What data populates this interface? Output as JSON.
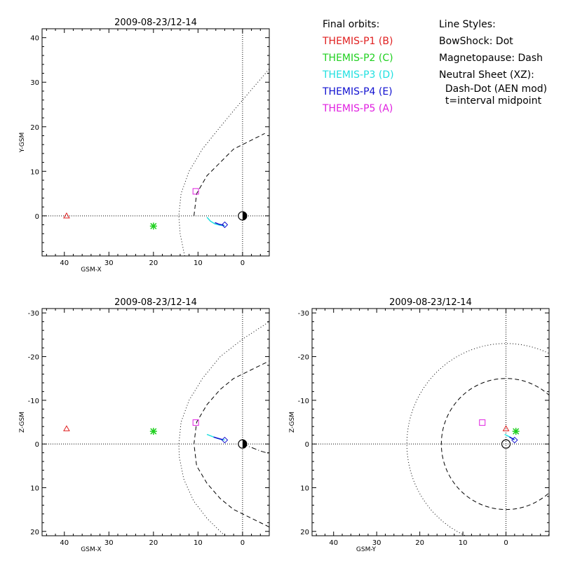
{
  "legend": {
    "orbits_title": "Final orbits:",
    "probes": [
      {
        "label": "THEMIS-P1 (B)",
        "color": "#e02020"
      },
      {
        "label": "THEMIS-P2 (C)",
        "color": "#20d020"
      },
      {
        "label": "THEMIS-P3 (D)",
        "color": "#20e0e0"
      },
      {
        "label": "THEMIS-P4 (E)",
        "color": "#1010d0"
      },
      {
        "label": "THEMIS-P5 (A)",
        "color": "#e020e0"
      }
    ],
    "styles_title": "Line Styles:",
    "bowshock": "BowShock: Dot",
    "magnetopause": "Magnetopause: Dash",
    "neutral_sheet": "Neutral Sheet (XZ):",
    "neutral_sheet_line2": "  Dash-Dot (AEN mod)",
    "neutral_sheet_line3": "  t=interval midpoint"
  },
  "chart_data": [
    {
      "type": "scatter",
      "title": "2009-08-23/12-14",
      "xlabel": "GSM-X",
      "ylabel": "Y-GSM",
      "xlim": [
        45,
        -6
      ],
      "ylim": [
        42,
        -9
      ],
      "xticks": [
        40,
        30,
        20,
        10,
        0
      ],
      "yticks": [
        0,
        10,
        20,
        30,
        40
      ],
      "markers": [
        {
          "probe": "THEMIS-P1 (B)",
          "symbol": "triangle",
          "color": "#e02020",
          "x": 39.5,
          "y": 0
        },
        {
          "probe": "THEMIS-P2 (C)",
          "symbol": "asterisk",
          "color": "#20d020",
          "x": 20.0,
          "y": -2.3
        },
        {
          "probe": "THEMIS-P5 (A)",
          "symbol": "square",
          "color": "#e020e0",
          "x": 10.5,
          "y": 5.5
        },
        {
          "probe": "THEMIS-P4 (E)",
          "symbol": "diamond",
          "color": "#1010d0",
          "x": 4.0,
          "y": -2.0
        }
      ],
      "tracks": [
        {
          "color": "#20e0e0",
          "points": [
            [
              8.0,
              -0.3
            ],
            [
              7.2,
              -1.2
            ],
            [
              6.2,
              -1.8
            ],
            [
              5.0,
              -2.1
            ],
            [
              4.0,
              -2.2
            ]
          ]
        },
        {
          "color": "#1010d0",
          "points": [
            [
              6.2,
              -1.5
            ],
            [
              5.2,
              -1.9
            ],
            [
              4.2,
              -2.1
            ]
          ]
        }
      ],
      "curves": [
        {
          "name": "BowShock",
          "style": "dot",
          "points": [
            [
              13,
              -9
            ],
            [
              14,
              -4
            ],
            [
              14.3,
              0
            ],
            [
              13.8,
              5
            ],
            [
              12,
              10
            ],
            [
              9,
              15
            ],
            [
              5,
              20
            ],
            [
              0,
              26
            ],
            [
              -6,
              33
            ]
          ]
        },
        {
          "name": "Magnetopause",
          "style": "dash",
          "points": [
            [
              10.9,
              0
            ],
            [
              10.3,
              5
            ],
            [
              8,
              9
            ],
            [
              5,
              12
            ],
            [
              2,
              15
            ],
            [
              0,
              16
            ],
            [
              -2,
              17
            ],
            [
              -5,
              18.5
            ]
          ]
        }
      ],
      "earth": {
        "x": 0,
        "y": 0
      }
    },
    {
      "type": "scatter",
      "title": "2009-08-23/12-14",
      "xlabel": "GSM-X",
      "ylabel": "Z-GSM",
      "xlim": [
        45,
        -6
      ],
      "ylim": [
        -31,
        21
      ],
      "xticks": [
        40,
        30,
        20,
        10,
        0
      ],
      "yticks": [
        20,
        10,
        0,
        -10,
        -20,
        -30
      ],
      "markers": [
        {
          "probe": "THEMIS-P1 (B)",
          "symbol": "triangle",
          "color": "#e02020",
          "x": 39.5,
          "y": -3.5
        },
        {
          "probe": "THEMIS-P2 (C)",
          "symbol": "asterisk",
          "color": "#20d020",
          "x": 20.0,
          "y": -2.9
        },
        {
          "probe": "THEMIS-P5 (A)",
          "symbol": "square",
          "color": "#e020e0",
          "x": 10.5,
          "y": -4.9
        },
        {
          "probe": "THEMIS-P4 (E)",
          "symbol": "diamond",
          "color": "#1010d0",
          "x": 4.0,
          "y": -0.9
        }
      ],
      "tracks": [
        {
          "color": "#20e0e0",
          "points": [
            [
              8.0,
              -2.2
            ],
            [
              7.0,
              -1.8
            ],
            [
              6.0,
              -1.4
            ],
            [
              5.0,
              -1.1
            ],
            [
              4.0,
              -0.9
            ]
          ]
        },
        {
          "color": "#1010d0",
          "points": [
            [
              6.5,
              -1.6
            ],
            [
              5.5,
              -1.3
            ],
            [
              4.5,
              -1.0
            ]
          ]
        }
      ],
      "curves": [
        {
          "name": "BowShock",
          "style": "dot",
          "points": [
            [
              4,
              21
            ],
            [
              8,
              17
            ],
            [
              11,
              13
            ],
            [
              13.2,
              8
            ],
            [
              14.2,
              3
            ],
            [
              14.3,
              0
            ],
            [
              13.8,
              -5
            ],
            [
              12,
              -10
            ],
            [
              9,
              -15
            ],
            [
              5,
              -20
            ],
            [
              0,
              -24
            ],
            [
              -6,
              -28
            ]
          ]
        },
        {
          "name": "Magnetopause",
          "style": "dash",
          "points": [
            [
              -6,
              19
            ],
            [
              -3,
              17.5
            ],
            [
              0,
              16
            ],
            [
              2,
              15
            ],
            [
              5,
              12.5
            ],
            [
              8,
              9
            ],
            [
              10.3,
              5
            ],
            [
              10.9,
              0
            ],
            [
              10.3,
              -5
            ],
            [
              8,
              -9
            ],
            [
              5,
              -12.5
            ],
            [
              2,
              -15
            ],
            [
              0,
              -16
            ],
            [
              -3,
              -17.5
            ],
            [
              -6,
              -19
            ]
          ]
        },
        {
          "name": "Neutral Sheet",
          "style": "dashdot",
          "points": [
            [
              0,
              0
            ],
            [
              -2,
              0.8
            ],
            [
              -4,
              1.6
            ],
            [
              -6,
              2.2
            ]
          ]
        }
      ],
      "earth": {
        "x": 0,
        "y": 0
      }
    },
    {
      "type": "scatter",
      "title": "2009-08-23/12-14",
      "xlabel": "GSM-Y",
      "ylabel": "Z-GSM",
      "xlim": [
        45,
        -10
      ],
      "ylim": [
        -31,
        21
      ],
      "xticks": [
        40,
        30,
        20,
        10,
        0
      ],
      "yticks": [
        20,
        10,
        0,
        -10,
        -20,
        -30
      ],
      "markers": [
        {
          "probe": "THEMIS-P1 (B)",
          "symbol": "triangle",
          "color": "#e02020",
          "x": 0.0,
          "y": -3.5
        },
        {
          "probe": "THEMIS-P2 (C)",
          "symbol": "asterisk",
          "color": "#20d020",
          "x": -2.3,
          "y": -2.9
        },
        {
          "probe": "THEMIS-P5 (A)",
          "symbol": "square",
          "color": "#e020e0",
          "x": 5.5,
          "y": -4.9
        },
        {
          "probe": "THEMIS-P4 (E)",
          "symbol": "diamond",
          "color": "#1010d0",
          "x": -2.0,
          "y": -0.9
        }
      ],
      "tracks": [
        {
          "color": "#20e0e0",
          "points": [
            [
              0.3,
              -2.2
            ],
            [
              -0.5,
              -1.8
            ],
            [
              -1.2,
              -1.4
            ],
            [
              -1.8,
              -1.1
            ],
            [
              -2.0,
              -0.9
            ]
          ]
        },
        {
          "color": "#1010d0",
          "points": [
            [
              -0.8,
              -1.6
            ],
            [
              -1.4,
              -1.3
            ],
            [
              -1.9,
              -1.0
            ]
          ]
        }
      ],
      "circles": [
        {
          "name": "BowShock",
          "style": "dot",
          "r": 23.0
        },
        {
          "name": "Magnetopause",
          "style": "dash",
          "r": 15.0
        }
      ],
      "earth": {
        "x": 0,
        "y": 0
      }
    }
  ]
}
